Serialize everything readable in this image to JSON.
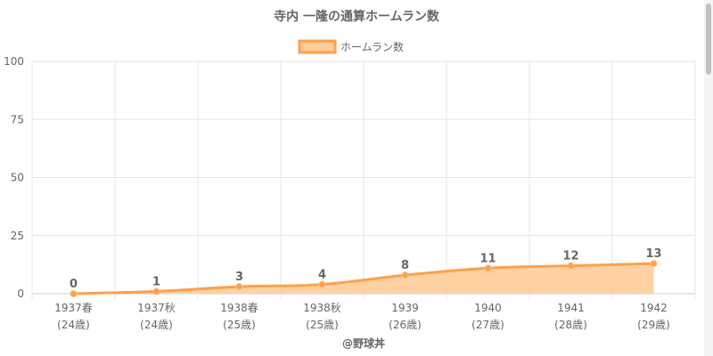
{
  "chart_data": {
    "type": "area",
    "title": "寺内 一隆の通算ホームラン数",
    "categories": [
      [
        "1937春",
        "(24歳)"
      ],
      [
        "1937秋",
        "(24歳)"
      ],
      [
        "1938春",
        "(25歳)"
      ],
      [
        "1938秋",
        "(25歳)"
      ],
      [
        "1939",
        "(26歳)"
      ],
      [
        "1940",
        "(27歳)"
      ],
      [
        "1941",
        "(28歳)"
      ],
      [
        "1942",
        "(29歳)"
      ]
    ],
    "series": [
      {
        "name": "ホームラン数",
        "values": [
          0,
          1,
          3,
          4,
          8,
          11,
          12,
          13
        ]
      }
    ],
    "ylim": [
      0,
      100
    ],
    "yticks": [
      0,
      25,
      50,
      75,
      100
    ],
    "grid": true,
    "legend": "top-center",
    "data_labels": true,
    "colors": {
      "line": "#ffa04a",
      "fill": "#ffcc99",
      "grid": "#e6e6e6",
      "text": "#666666"
    }
  },
  "footer": {
    "credit": "@野球丼"
  }
}
